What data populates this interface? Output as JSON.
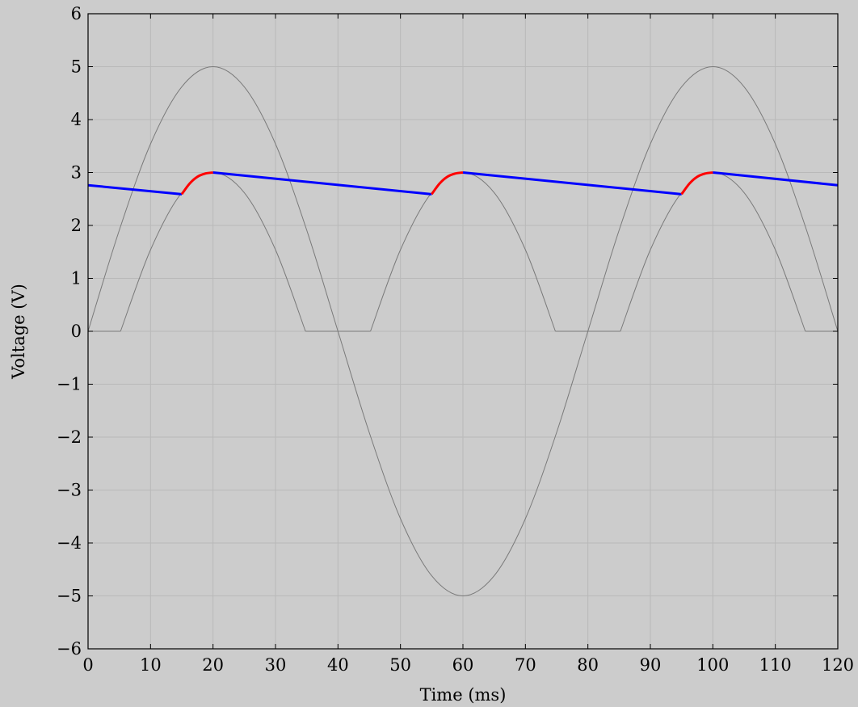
{
  "chart_data": {
    "type": "line",
    "title": "",
    "xlabel": "Time (ms)",
    "ylabel": "Voltage (V)",
    "xlim": [
      0,
      120
    ],
    "ylim": [
      -6,
      6
    ],
    "grid": true,
    "x_ticks": [
      0,
      10,
      20,
      30,
      40,
      50,
      60,
      70,
      80,
      90,
      100,
      110,
      120
    ],
    "y_ticks": [
      -6,
      -5,
      -4,
      -3,
      -2,
      -1,
      0,
      1,
      2,
      3,
      4,
      5,
      6
    ],
    "x_tick_labels": [
      "0",
      "10",
      "20",
      "30",
      "40",
      "50",
      "60",
      "70",
      "80",
      "90",
      "100",
      "110",
      "120"
    ],
    "y_tick_labels": [
      "−6",
      "−5",
      "−4",
      "−3",
      "−2",
      "−1",
      "0",
      "1",
      "2",
      "3",
      "4",
      "5",
      "6"
    ],
    "series": [
      {
        "color": "#7a7a7a",
        "x": [
          0,
          5,
          10,
          15,
          20,
          25,
          30,
          35,
          40,
          45,
          50,
          55,
          60,
          65,
          70,
          75,
          80,
          85,
          90,
          95,
          100,
          105,
          110,
          115,
          120
        ],
        "y": [
          0,
          1.91,
          3.54,
          4.62,
          5.0,
          4.62,
          3.54,
          1.91,
          0,
          -1.91,
          -3.54,
          -4.62,
          -5.0,
          -4.62,
          -3.54,
          -1.91,
          0,
          1.91,
          3.54,
          4.62,
          5.0,
          4.62,
          3.54,
          1.91,
          0
        ]
      },
      {
        "color": "#7a7a7a",
        "x": [
          0,
          5.2,
          10,
          15,
          20,
          25,
          30,
          34.8,
          45.2,
          50,
          55,
          60,
          65,
          70,
          74.8,
          85.2,
          90,
          95,
          100,
          105,
          110,
          114.8,
          120
        ],
        "y": [
          0,
          0,
          1.54,
          2.62,
          3.0,
          2.62,
          1.54,
          0,
          0,
          1.54,
          2.62,
          3.0,
          2.62,
          1.54,
          0,
          0,
          1.54,
          2.62,
          3.0,
          2.62,
          1.54,
          0,
          0
        ]
      },
      {
        "color": "#0000ff",
        "segments": [
          {
            "x": [
              0,
              15
            ],
            "y": [
              2.76,
              2.59
            ]
          },
          {
            "x": [
              20,
              55
            ],
            "y": [
              3.0,
              2.59
            ]
          },
          {
            "x": [
              60,
              95
            ],
            "y": [
              3.0,
              2.59
            ]
          },
          {
            "x": [
              100,
              120
            ],
            "y": [
              3.0,
              2.76
            ]
          }
        ]
      },
      {
        "color": "#ff0000",
        "segments": [
          {
            "x": [
              15,
              16.25,
              17.5,
              18.75,
              20
            ],
            "y": [
              2.59,
              2.79,
              2.92,
              2.98,
              3.0
            ]
          },
          {
            "x": [
              55,
              56.25,
              57.5,
              58.75,
              60
            ],
            "y": [
              2.59,
              2.79,
              2.92,
              2.98,
              3.0
            ]
          },
          {
            "x": [
              95,
              96.25,
              97.5,
              98.75,
              100
            ],
            "y": [
              2.59,
              2.79,
              2.92,
              2.98,
              3.0
            ]
          }
        ]
      }
    ]
  }
}
